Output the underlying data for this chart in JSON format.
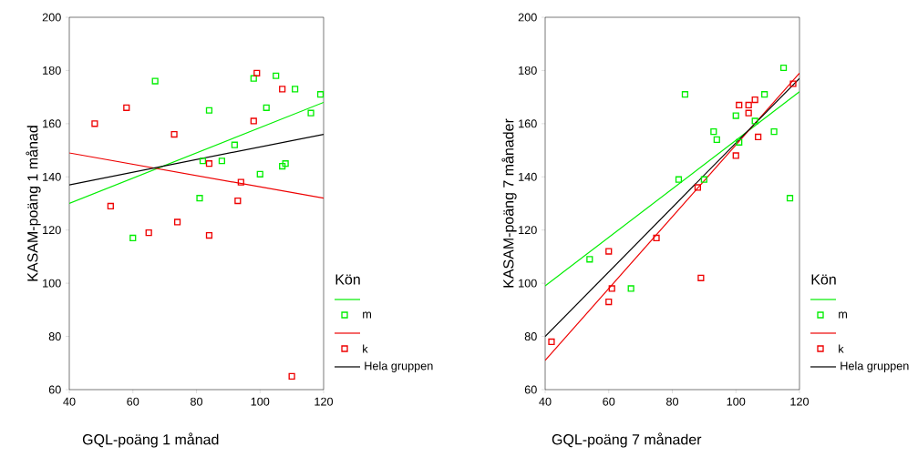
{
  "chart_data": [
    {
      "type": "scatter",
      "xlabel": "GQL-poäng 1 månad",
      "ylabel": "KASAM-poäng 1 månad",
      "legend_title": "Kön",
      "legend": "right",
      "xlim": [
        40,
        120
      ],
      "ylim": [
        60,
        200
      ],
      "xticks": [
        40,
        60,
        80,
        100,
        120
      ],
      "yticks": [
        60,
        80,
        100,
        120,
        140,
        160,
        180,
        200
      ],
      "series": [
        {
          "type": "line",
          "color": "#00ee00",
          "x": [
            40,
            120
          ],
          "values": [
            130,
            168
          ]
        },
        {
          "name": "m",
          "marker": "square",
          "color": "#00ee00",
          "x": [
            60,
            67,
            81,
            82,
            84,
            88,
            92,
            98,
            100,
            102,
            105,
            107,
            108,
            111,
            116,
            119
          ],
          "values": [
            117,
            176,
            132,
            146,
            165,
            146,
            152,
            177,
            141,
            166,
            178,
            144,
            145,
            173,
            164,
            171
          ]
        },
        {
          "type": "line",
          "color": "#ee0000",
          "x": [
            40,
            120
          ],
          "values": [
            149,
            132
          ]
        },
        {
          "name": "k",
          "marker": "square",
          "color": "#ee0000",
          "x": [
            48,
            53,
            58,
            65,
            73,
            74,
            84,
            84,
            93,
            94,
            98,
            99,
            107,
            110
          ],
          "values": [
            160,
            129,
            166,
            119,
            156,
            123,
            145,
            118,
            131,
            138,
            161,
            179,
            173,
            65
          ]
        },
        {
          "type": "line",
          "name": "Hela gruppen",
          "color": "#000000",
          "x": [
            40,
            120
          ],
          "values": [
            137,
            156
          ]
        }
      ]
    },
    {
      "type": "scatter",
      "xlabel": "GQL-poäng 7 månader",
      "ylabel": "KASAM-poäng 7 månader",
      "legend_title": "Kön",
      "legend": "right",
      "xlim": [
        40,
        120
      ],
      "ylim": [
        60,
        200
      ],
      "xticks": [
        40,
        60,
        80,
        100,
        120
      ],
      "yticks": [
        60,
        80,
        100,
        120,
        140,
        160,
        180,
        200
      ],
      "series": [
        {
          "type": "line",
          "color": "#00ee00",
          "x": [
            40,
            120
          ],
          "values": [
            99,
            172
          ]
        },
        {
          "name": "m",
          "marker": "square",
          "color": "#00ee00",
          "x": [
            54,
            67,
            82,
            84,
            90,
            93,
            94,
            100,
            101,
            106,
            109,
            112,
            115,
            117
          ],
          "values": [
            109,
            98,
            139,
            171,
            139,
            157,
            154,
            163,
            153,
            161,
            171,
            157,
            181,
            132
          ]
        },
        {
          "type": "line",
          "color": "#ee0000",
          "x": [
            40,
            120
          ],
          "values": [
            71,
            179
          ]
        },
        {
          "name": "k",
          "marker": "square",
          "color": "#ee0000",
          "x": [
            42,
            60,
            60,
            61,
            75,
            88,
            89,
            100,
            101,
            104,
            104,
            106,
            107,
            118
          ],
          "values": [
            78,
            112,
            93,
            98,
            117,
            136,
            102,
            148,
            167,
            164,
            167,
            169,
            155,
            175
          ]
        },
        {
          "type": "line",
          "name": "Hela gruppen",
          "color": "#000000",
          "x": [
            40,
            120
          ],
          "values": [
            80,
            177
          ]
        }
      ]
    }
  ]
}
